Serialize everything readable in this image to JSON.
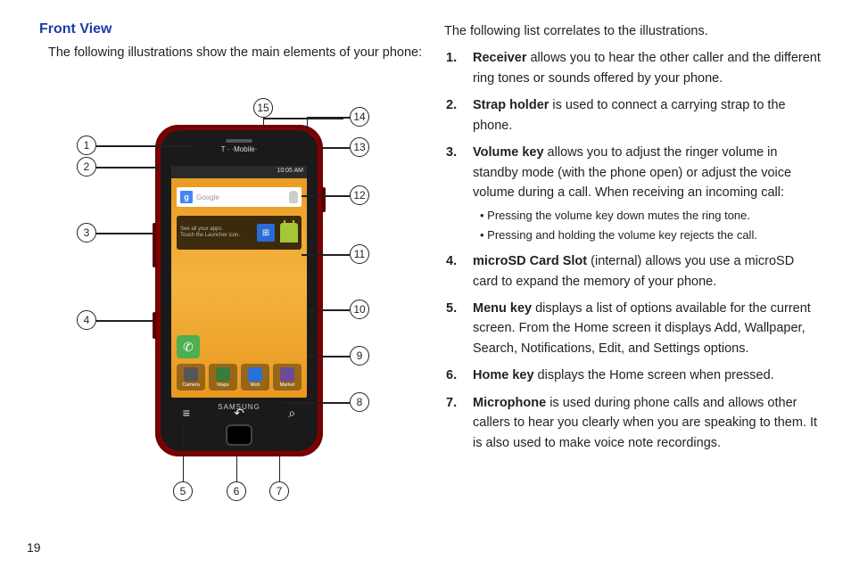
{
  "section_title": "Front View",
  "left_intro": "The following illustrations show the main elements of your phone:",
  "right_intro": "The following list correlates to the illustrations.",
  "page_number": "19",
  "phone": {
    "carrier": "T · ·Mobile·",
    "time": "10:05 AM",
    "search_placeholder": "Google",
    "widget_text_line1": "See all your apps.",
    "widget_text_line2": "Touch the Launcher icon.",
    "brand": "SAMSUNG",
    "dock_apps": [
      {
        "label": "Camera",
        "color": "#555"
      },
      {
        "label": "Maps",
        "color": "#3a7d3a"
      },
      {
        "label": "Web",
        "color": "#2a6edb"
      },
      {
        "label": "Market",
        "color": "#6b4a9a"
      }
    ],
    "softkeys": {
      "menu": "≡",
      "back": "↶",
      "search": "⌕"
    }
  },
  "callouts": {
    "c1": "1",
    "c2": "2",
    "c3": "3",
    "c4": "4",
    "c5": "5",
    "c6": "6",
    "c7": "7",
    "c8": "8",
    "c9": "9",
    "c10": "10",
    "c11": "11",
    "c12": "12",
    "c13": "13",
    "c14": "14",
    "c15": "15"
  },
  "features": [
    {
      "n": "1.",
      "term": "Receiver",
      "desc": " allows you to hear the other caller and the different ring tones or sounds offered by your phone."
    },
    {
      "n": "2.",
      "term": "Strap holder",
      "desc": " is used to connect a carrying strap to the phone."
    },
    {
      "n": "3.",
      "term": "Volume key",
      "desc": " allows you to adjust the ringer volume in standby mode (with the phone open) or adjust the voice volume during a call. When receiving an incoming call:",
      "sub": [
        "Pressing the volume key down mutes the ring tone.",
        "Pressing and holding the volume key rejects the call."
      ]
    },
    {
      "n": "4.",
      "term": "microSD Card Slot",
      "desc": " (internal) allows you use a microSD card to expand the memory of your phone."
    },
    {
      "n": "5.",
      "term": "Menu key",
      "desc": " displays a list of options available for the current screen. From the Home screen it displays Add, Wallpaper, Search, Notifications, Edit, and Settings options."
    },
    {
      "n": "6.",
      "term": "Home key",
      "desc": " displays the Home screen when pressed."
    },
    {
      "n": "7.",
      "term": "Microphone",
      "desc": " is used during phone calls and allows other callers to hear you clearly when you are speaking to them. It is also used to make voice note recordings."
    }
  ],
  "colors": {
    "title": "#1a3da8",
    "phone_body": "#8a0000",
    "phone_inner": "#1a1a1a",
    "screen_grad_a": "#e8981f",
    "screen_grad_b": "#f4b440"
  }
}
